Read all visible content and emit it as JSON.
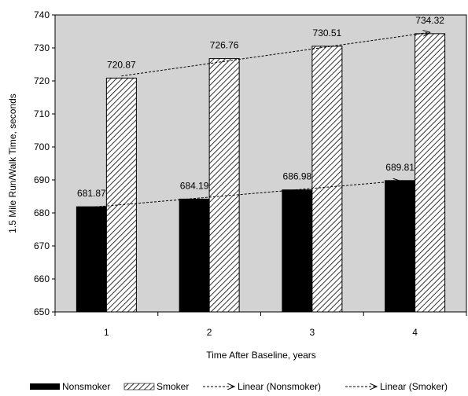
{
  "chart_data": {
    "type": "bar",
    "categories": [
      "1",
      "2",
      "3",
      "4"
    ],
    "series": [
      {
        "name": "Nonsmoker",
        "values": [
          681.87,
          684.19,
          686.98,
          689.81
        ],
        "color": "#000000",
        "fill": "solid"
      },
      {
        "name": "Smoker",
        "values": [
          720.87,
          726.76,
          730.51,
          734.32
        ],
        "color": "#ffffff",
        "fill": "hatched"
      }
    ],
    "data_labels": {
      "nonsmoker": [
        "681.87",
        "684.19",
        "686.98",
        "689.81"
      ],
      "smoker": [
        "720.87",
        "726.76",
        "730.51",
        "734.32"
      ]
    },
    "trendlines": [
      {
        "name": "Linear (Nonsmoker)",
        "series": "Nonsmoker",
        "style": "dashed-arrow"
      },
      {
        "name": "Linear (Smoker)",
        "series": "Smoker",
        "style": "dashed-arrow"
      }
    ],
    "xlabel": "Time After Baseline, years",
    "ylabel": "1.5 Mile Run/Walk Time, seconds",
    "ylim": [
      650,
      740
    ],
    "yticks": [
      "650",
      "660",
      "670",
      "680",
      "690",
      "700",
      "710",
      "720",
      "730",
      "740"
    ],
    "plot_background": "#d3d3d3",
    "grid": false,
    "legend_position": "bottom"
  }
}
